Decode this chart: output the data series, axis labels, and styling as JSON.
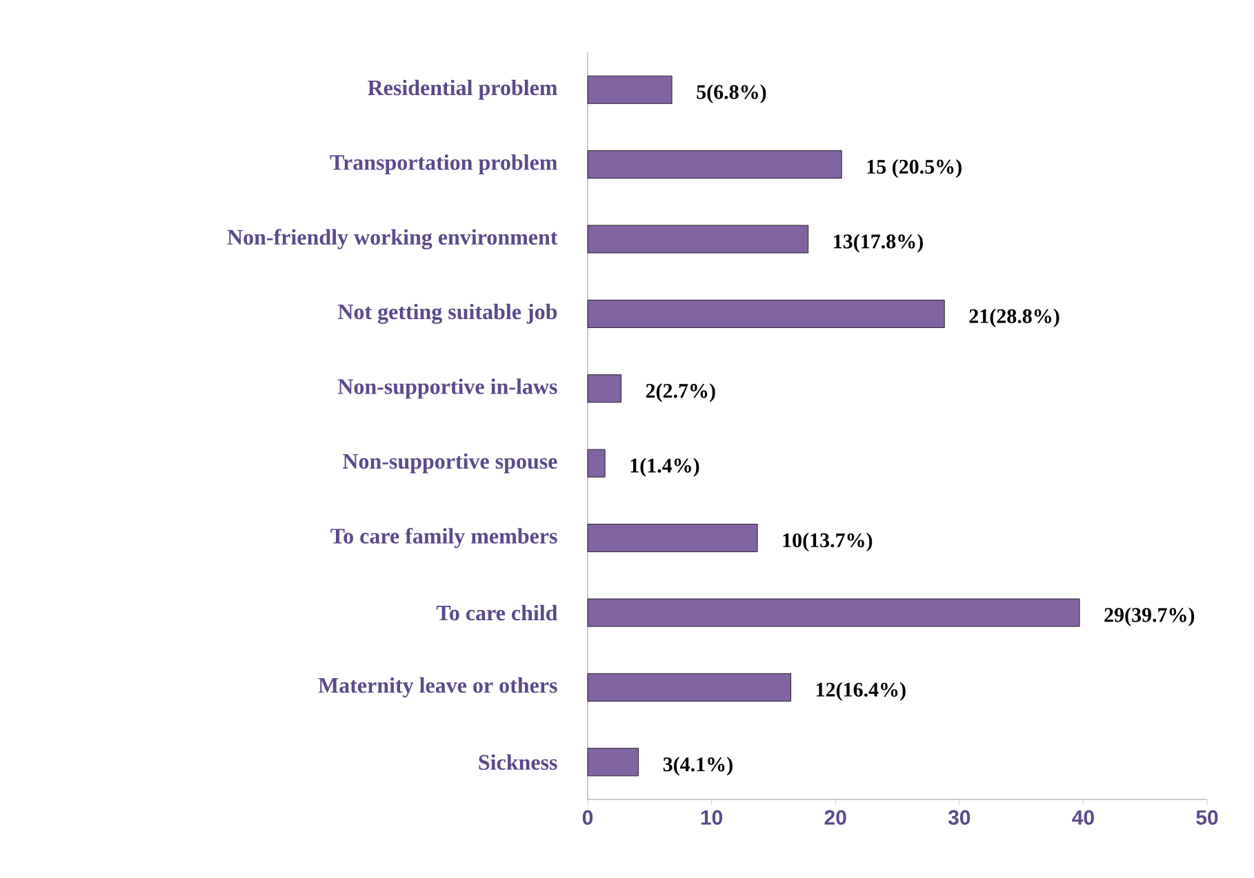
{
  "chart_data": {
    "type": "bar",
    "orientation": "horizontal",
    "categories": [
      "Residential problem",
      "Transportation problem",
      "Non-friendly working environment",
      "Not getting suitable job",
      "Non-supportive in-laws",
      "Non-supportive spouse",
      "To care family members",
      "To care child",
      "Maternity leave or others",
      "Sickness"
    ],
    "values": [
      6.8,
      20.5,
      17.8,
      28.8,
      2.7,
      1.4,
      13.7,
      39.7,
      16.4,
      4.1
    ],
    "value_labels": [
      "5(6.8%)",
      "15 (20.5%)",
      "13(17.8%)",
      "21(28.8%)",
      "2(2.7%)",
      "1(1.4%)",
      "10(13.7%)",
      "29(39.7%)",
      "12(16.4%)",
      "3(4.1%)"
    ],
    "color": "#8064a2",
    "xlim": [
      0,
      50
    ],
    "xticks": [
      0,
      10,
      20,
      30,
      40,
      50
    ],
    "grid": false
  }
}
